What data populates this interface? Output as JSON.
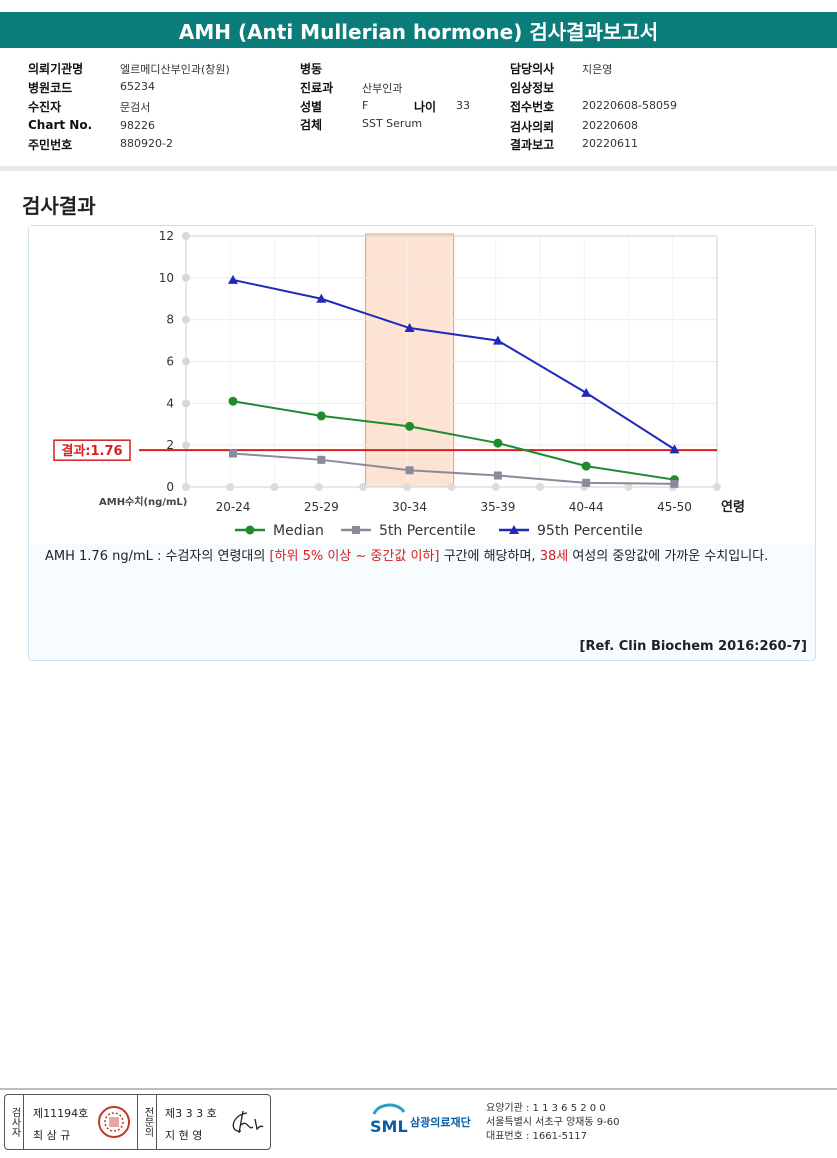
{
  "title": "AMH (Anti Mullerian hormone) 검사결과보고서",
  "info": {
    "col1": [
      {
        "label": "의뢰기관명",
        "value": "엘르메디산부인과(창원)"
      },
      {
        "label": "병원코드",
        "value": "65234"
      },
      {
        "label": "수진자",
        "value": "문검서"
      },
      {
        "label": "Chart No.",
        "value": "98226"
      },
      {
        "label": "주민번호",
        "value": "880920-2"
      }
    ],
    "col2": [
      {
        "label": "병동",
        "value": ""
      },
      {
        "label": "진료과",
        "value": "산부인과"
      },
      {
        "label": "성별",
        "value": "F"
      },
      {
        "label": "검체",
        "value": "SST Serum"
      }
    ],
    "age_label": "나이",
    "age_value": "33",
    "col3": [
      {
        "label": "담당의사",
        "value": "지은영"
      },
      {
        "label": "임상정보",
        "value": ""
      },
      {
        "label": "접수번호",
        "value": "20220608-58059"
      },
      {
        "label": "검사의뢰",
        "value": "20220608"
      },
      {
        "label": "결과보고",
        "value": "20220611"
      }
    ]
  },
  "section_title": "검사결과",
  "chart_data": {
    "type": "line",
    "categories": [
      "20-24",
      "25-29",
      "30-34",
      "35-39",
      "40-44",
      "45-50"
    ],
    "xlabel": "연령",
    "ylabel": "AMH수치(ng/mL)",
    "ylim": [
      0,
      12
    ],
    "yticks": [
      0,
      2,
      4,
      6,
      8,
      10,
      12
    ],
    "grid": true,
    "legend_position": "bottom",
    "highlight_category": "30-34",
    "result_line": {
      "value": 1.76,
      "label": "결과:1.76",
      "color": "#d61f1f"
    },
    "series": [
      {
        "name": "Median",
        "color": "#1e8c2d",
        "marker": "circle",
        "values": [
          4.1,
          3.4,
          2.9,
          2.1,
          1.0,
          0.35
        ]
      },
      {
        "name": "5th Percentile",
        "color": "#8a8a9a",
        "marker": "square",
        "values": [
          1.6,
          1.3,
          0.8,
          0.55,
          0.2,
          0.15
        ]
      },
      {
        "name": "95th Percentile",
        "color": "#2029b8",
        "marker": "triangle",
        "values": [
          9.9,
          9.0,
          7.6,
          7.0,
          4.5,
          1.8
        ]
      }
    ]
  },
  "description": {
    "p1": "AMH  1.76 ng/mL : 수검자의 연령대의 ",
    "r1": "[하위 5% 이상 ~ 중간값 이하]",
    "p2": " 구간에 해당하며, ",
    "r2": "38세",
    "p3": " 여성의 중앙값에 가까운 수치입니다."
  },
  "reference": "[Ref. Clin Biochem 2016:260-7]",
  "footer": {
    "stamp1_vertical": "검사자",
    "stamp1_no": "제11194호",
    "stamp1_name": "최 삼 규",
    "stamp2_vertical": "전문의",
    "stamp2_no": "제3 3 3 호",
    "stamp2_name": "지 현 영",
    "logo_text": "SML",
    "org_name": "삼광의료재단",
    "line1": "요양기관 : 1 1 3 6 5 2 0 0",
    "line2": "서울특별시 서초구 양재동 9-60",
    "line3": "대표번호 : 1661-5117"
  }
}
